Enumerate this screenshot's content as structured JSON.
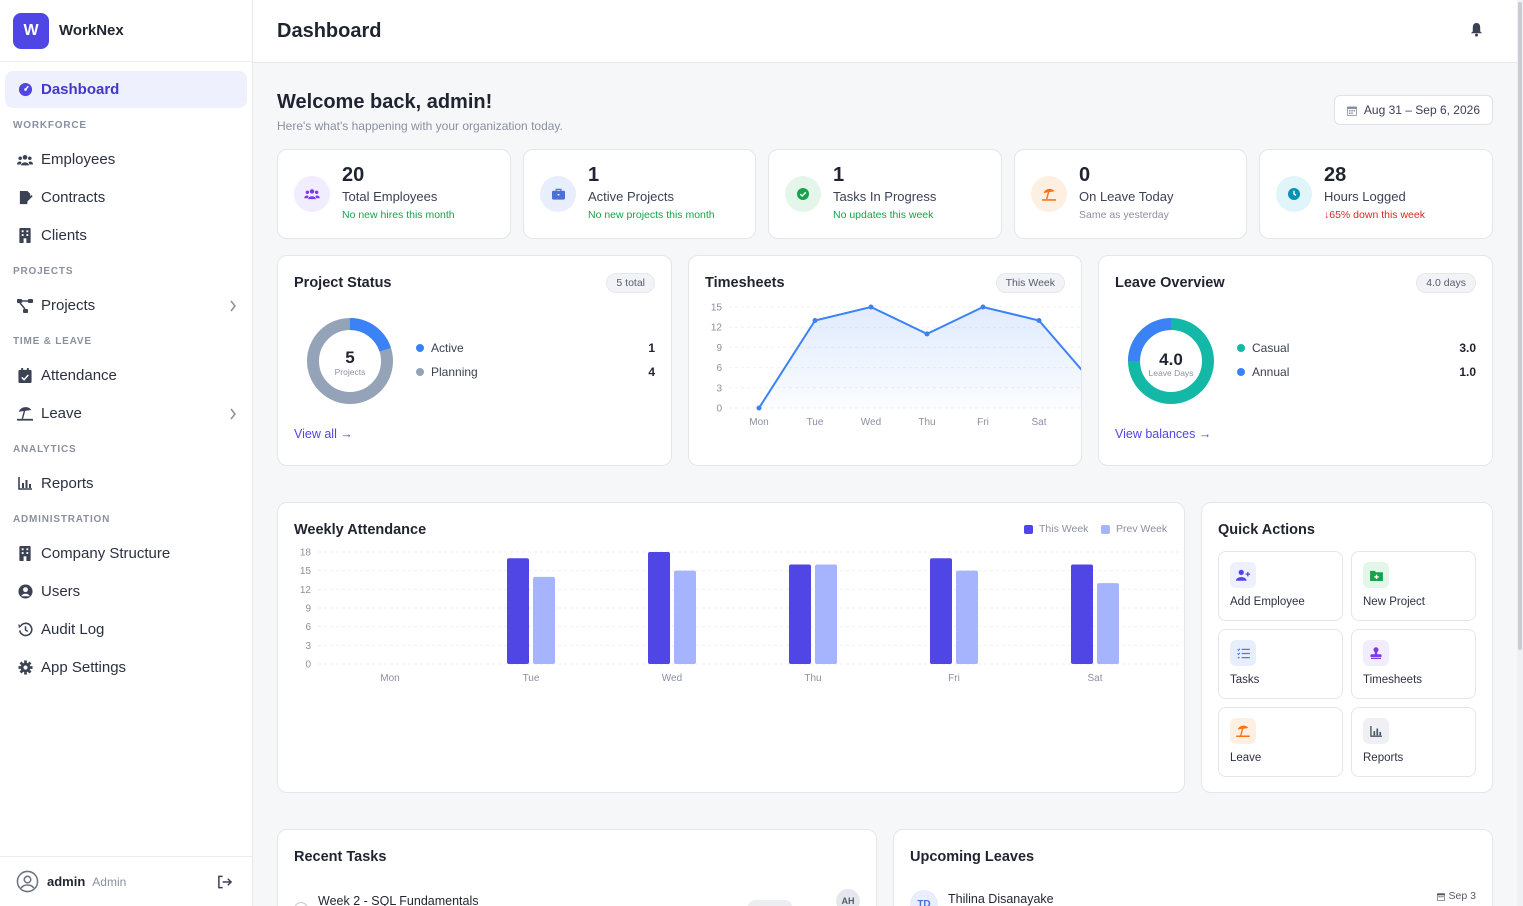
{
  "brand": {
    "logo_letter": "W",
    "name": "WorkNex",
    "color": "#4f46e5"
  },
  "sidebar": {
    "dashboard": "Dashboard",
    "sections": {
      "workforce": "WORKFORCE",
      "projects": "PROJECTS",
      "time_leave": "TIME & LEAVE",
      "analytics": "ANALYTICS",
      "administration": "ADMINISTRATION"
    },
    "items": {
      "employees": "Employees",
      "contracts": "Contracts",
      "clients": "Clients",
      "projects": "Projects",
      "attendance": "Attendance",
      "leave": "Leave",
      "reports": "Reports",
      "company_structure": "Company Structure",
      "users": "Users",
      "audit_log": "Audit Log",
      "app_settings": "App Settings"
    },
    "footer": {
      "user": "admin",
      "role": "Admin"
    }
  },
  "header": {
    "title": "Dashboard"
  },
  "welcome": {
    "title": "Welcome back, admin!",
    "subtitle": "Here's what's happening with your organization today.",
    "date_range": "Aug 31 – Sep 6, 2026"
  },
  "stats": [
    {
      "value": "20",
      "label": "Total Employees",
      "note": "No new hires this month",
      "color": "#7c3aed",
      "bg": "#f1ecfe"
    },
    {
      "value": "1",
      "label": "Active Projects",
      "note": "No new projects this month",
      "color": "#4f6fd8",
      "bg": "#e8eefc"
    },
    {
      "value": "1",
      "label": "Tasks In Progress",
      "note": "No updates this week",
      "color": "#16a34a",
      "bg": "#e4f6ea"
    },
    {
      "value": "0",
      "label": "On Leave Today",
      "note": "Same as yesterday",
      "color": "#f97316",
      "bg": "#feefe3"
    },
    {
      "value": "28",
      "label": "Hours Logged",
      "note": "65% down this week",
      "color": "#0891b2",
      "bg": "#dff5f9"
    }
  ],
  "project_status": {
    "title": "Project Status",
    "badge": "5 total",
    "center_value": "5",
    "center_label": "Projects",
    "items": [
      {
        "label": "Active",
        "value": "1",
        "color": "#3b82f6"
      },
      {
        "label": "Planning",
        "value": "4",
        "color": "#94a3b8"
      }
    ],
    "link": "View all →"
  },
  "timesheets": {
    "title": "Timesheets",
    "badge": "This Week",
    "chart_data": {
      "type": "area",
      "categories": [
        "Mon",
        "Tue",
        "Wed",
        "Thu",
        "Fri",
        "Sat"
      ],
      "values": [
        0,
        13,
        15,
        11,
        15,
        13
      ],
      "yticks": [
        "15",
        "12",
        "9",
        "6",
        "3",
        "0"
      ],
      "ylim": [
        0,
        15
      ],
      "color": "#3b82f6"
    }
  },
  "leave_overview": {
    "title": "Leave Overview",
    "badge": "4.0 days",
    "center_value": "4.0",
    "center_label": "Leave Days",
    "items": [
      {
        "label": "Casual",
        "value": "3.0",
        "color": "#14b8a6"
      },
      {
        "label": "Annual",
        "value": "1.0",
        "color": "#3b82f6"
      }
    ],
    "link": "View balances →"
  },
  "weekly_attendance": {
    "title": "Weekly Attendance",
    "chart_data": {
      "type": "bar",
      "categories": [
        "Mon",
        "Tue",
        "Wed",
        "Thu",
        "Fri",
        "Sat"
      ],
      "series": [
        {
          "name": "This Week",
          "values": [
            0,
            17,
            18,
            16,
            17,
            16
          ],
          "color": "#4f46e5"
        },
        {
          "name": "Prev Week",
          "values": [
            0,
            14,
            15,
            16,
            15,
            13
          ],
          "color": "#a5b4fc"
        }
      ],
      "yticks": [
        "18",
        "15",
        "12",
        "9",
        "6",
        "3",
        "0"
      ],
      "ylim": [
        0,
        18
      ]
    }
  },
  "quick_actions": {
    "title": "Quick Actions",
    "tiles": [
      {
        "label": "Add Employee",
        "icon": "user-plus-icon",
        "color": "#4f46e5",
        "bg": "#eef0fd"
      },
      {
        "label": "New Project",
        "icon": "folder-plus-icon",
        "color": "#16a34a",
        "bg": "#e4f6ea"
      },
      {
        "label": "Tasks",
        "icon": "list-check-icon",
        "color": "#3b82f6",
        "bg": "#e8eefc"
      },
      {
        "label": "Timesheets",
        "icon": "stamp-icon",
        "color": "#7c3aed",
        "bg": "#f1ecfe"
      },
      {
        "label": "Leave",
        "icon": "umbrella-beach-icon",
        "color": "#f97316",
        "bg": "#feefe3"
      },
      {
        "label": "Reports",
        "icon": "chart-icon",
        "color": "#475569",
        "bg": "#eef0f3"
      }
    ]
  },
  "recent_tasks": {
    "title": "Recent Tasks",
    "first_task": "Week 2 - SQL Fundamentals",
    "assignee_initials": "AH"
  },
  "upcoming_leaves": {
    "title": "Upcoming Leaves",
    "first_name": "Thilina Disanayake",
    "first_initials": "TD",
    "first_date": "Sep 3"
  }
}
